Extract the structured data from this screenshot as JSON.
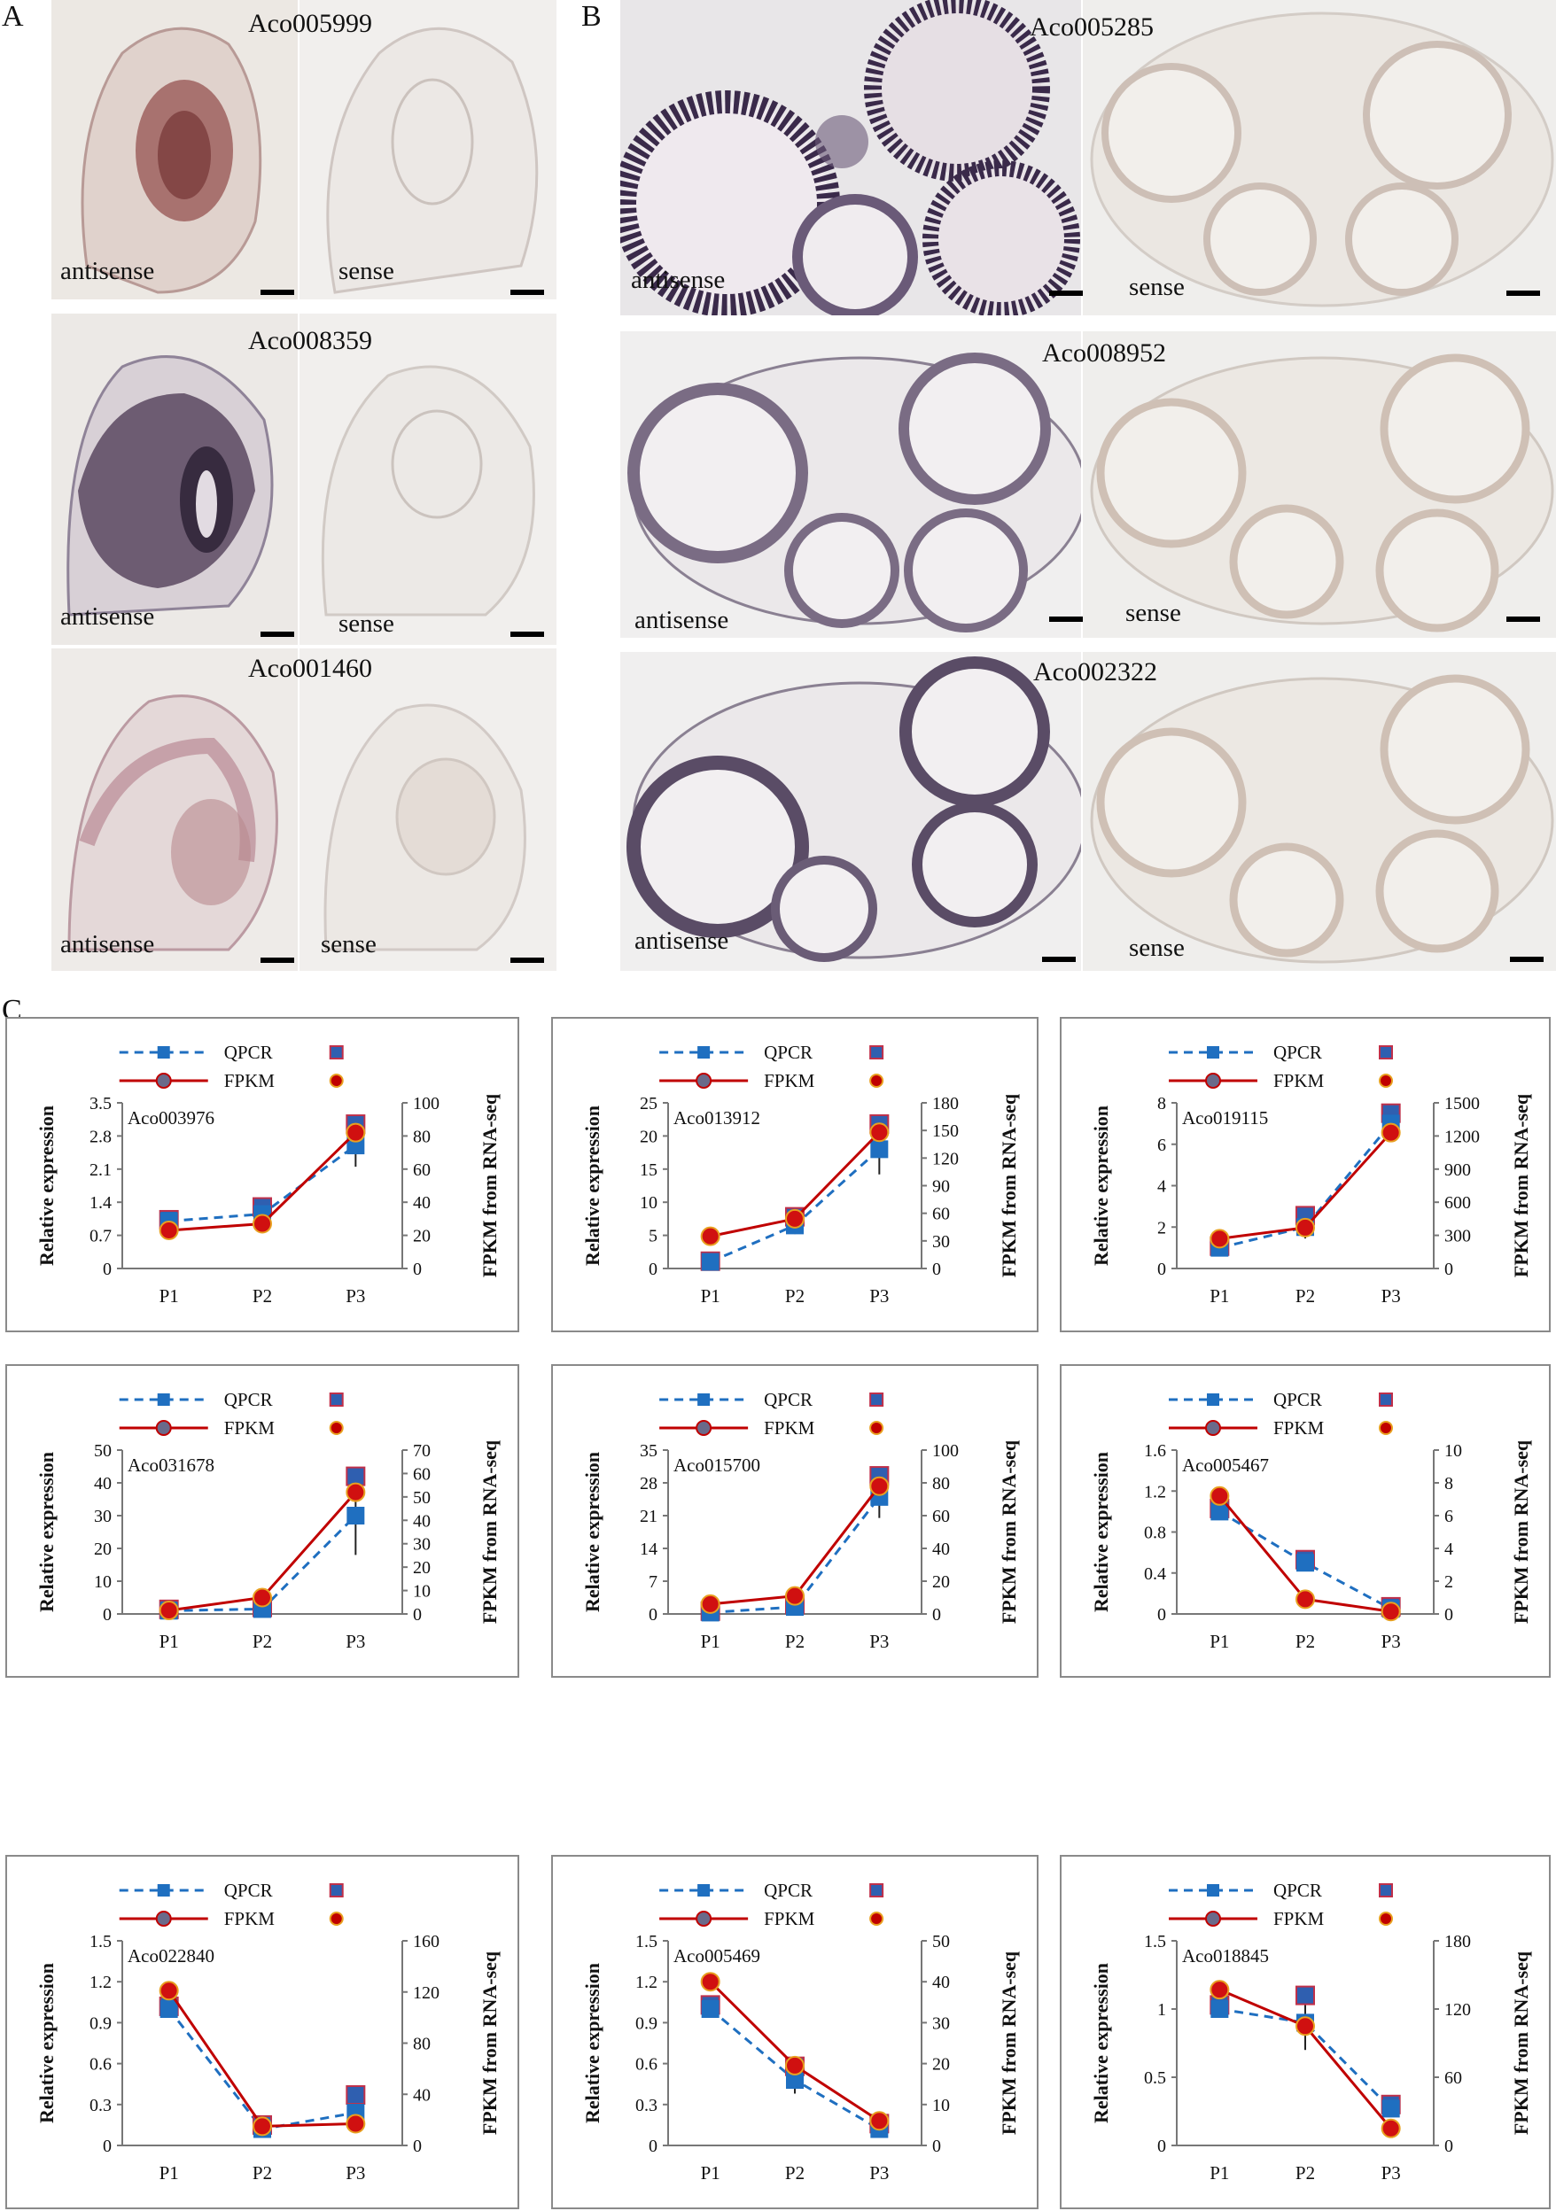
{
  "panel_labels": {
    "a": "A",
    "b": "B",
    "c": "C"
  },
  "panel_a": [
    {
      "gene": "Aco005999",
      "antisense": "antisense",
      "sense": "sense"
    },
    {
      "gene": "Aco008359",
      "antisense": "antisense",
      "sense": "sense"
    },
    {
      "gene": "Aco001460",
      "antisense": "antisense",
      "sense": "sense"
    }
  ],
  "panel_b": [
    {
      "gene": "Aco005285",
      "antisense": "antisense",
      "sense": "sense"
    },
    {
      "gene": "Aco008952",
      "antisense": "antisense",
      "sense": "sense"
    },
    {
      "gene": "Aco002322",
      "antisense": "antisense",
      "sense": "sense"
    }
  ],
  "colors": {
    "qpcr": "#1f6fc0",
    "fpkm": "#c00000",
    "frame": "#8a8a8a",
    "stain_purple": "#3a2a4a",
    "stain_red": "#8a3a3a"
  },
  "chart_data": [
    {
      "type": "line",
      "title": "Aco003976",
      "categories": [
        "P1",
        "P2",
        "P3"
      ],
      "series": [
        {
          "name": "QPCR",
          "axis": "left",
          "values": [
            1.0,
            1.15,
            2.6
          ],
          "error": [
            0.03,
            0.15,
            0.45
          ]
        },
        {
          "name": "FPKM",
          "axis": "right",
          "values": [
            23,
            27,
            82
          ]
        }
      ],
      "ylabel": "Relative expression",
      "y2label": "FPKM from RNA-seq",
      "ylim": [
        0,
        3.5
      ],
      "yticks": [
        "0",
        "0.7",
        "1.4",
        "2.1",
        "2.8",
        "3.5"
      ],
      "y2lim": [
        0,
        100
      ],
      "y2ticks": [
        "0",
        "20",
        "40",
        "60",
        "80",
        "100"
      ]
    },
    {
      "type": "line",
      "title": "Aco013912",
      "categories": [
        "P1",
        "P2",
        "P3"
      ],
      "series": [
        {
          "name": "QPCR",
          "axis": "left",
          "values": [
            1.0,
            6.5,
            18.0
          ],
          "error": [
            0.1,
            1.3,
            3.8
          ]
        },
        {
          "name": "FPKM",
          "axis": "right",
          "values": [
            35,
            54,
            148
          ]
        }
      ],
      "ylabel": "Relative expression",
      "y2label": "FPKM from RNA-seq",
      "ylim": [
        0,
        25
      ],
      "yticks": [
        "0",
        "5",
        "10",
        "15",
        "20",
        "25"
      ],
      "y2lim": [
        0,
        180
      ],
      "y2ticks": [
        "0",
        "30",
        "60",
        "90",
        "120",
        "150",
        "180"
      ]
    },
    {
      "type": "line",
      "title": "Aco019115",
      "categories": [
        "P1",
        "P2",
        "P3"
      ],
      "series": [
        {
          "name": "QPCR",
          "axis": "left",
          "values": [
            1.0,
            2.0,
            7.0
          ],
          "error": [
            0.08,
            0.55,
            0.5
          ]
        },
        {
          "name": "FPKM",
          "axis": "right",
          "values": [
            270,
            370,
            1230
          ]
        }
      ],
      "ylabel": "Relative expression",
      "y2label": "FPKM from RNA-seq",
      "ylim": [
        0,
        8
      ],
      "yticks": [
        "0",
        "2",
        "4",
        "6",
        "8"
      ],
      "y2lim": [
        0,
        1500
      ],
      "y2ticks": [
        "0",
        "300",
        "600",
        "900",
        "1200",
        "1500"
      ]
    },
    {
      "type": "line",
      "title": "Aco031678",
      "categories": [
        "P1",
        "P2",
        "P3"
      ],
      "series": [
        {
          "name": "QPCR",
          "axis": "left",
          "values": [
            1.0,
            1.5,
            30.0
          ],
          "error": [
            0.4,
            0.5,
            12.0
          ]
        },
        {
          "name": "FPKM",
          "axis": "right",
          "values": [
            1.5,
            7,
            52
          ]
        }
      ],
      "ylabel": "Relative expression",
      "y2label": "FPKM from RNA-seq",
      "ylim": [
        0,
        50
      ],
      "yticks": [
        "0",
        "10",
        "20",
        "30",
        "40",
        "50"
      ],
      "y2lim": [
        0,
        70
      ],
      "y2ticks": [
        "0",
        "10",
        "20",
        "30",
        "40",
        "50",
        "60",
        "70"
      ]
    },
    {
      "type": "line",
      "title": "Aco015700",
      "categories": [
        "P1",
        "P2",
        "P3"
      ],
      "series": [
        {
          "name": "QPCR",
          "axis": "left",
          "values": [
            0.3,
            1.5,
            25.0
          ],
          "error": [
            0.3,
            0.5,
            4.5
          ]
        },
        {
          "name": "FPKM",
          "axis": "right",
          "values": [
            6,
            11,
            78
          ]
        }
      ],
      "ylabel": "Relative expression",
      "y2label": "FPKM from RNA-seq",
      "ylim": [
        0,
        35
      ],
      "yticks": [
        "0",
        "7",
        "14",
        "21",
        "28",
        "35"
      ],
      "y2lim": [
        0,
        100
      ],
      "y2ticks": [
        "0",
        "20",
        "40",
        "60",
        "80",
        "100"
      ]
    },
    {
      "type": "line",
      "title": "Aco005467",
      "categories": [
        "P1",
        "P2",
        "P3"
      ],
      "series": [
        {
          "name": "QPCR",
          "axis": "left",
          "values": [
            1.0,
            0.5,
            0.05
          ],
          "error": [
            0.03,
            0.03,
            0.02
          ]
        },
        {
          "name": "FPKM",
          "axis": "right",
          "values": [
            7.2,
            0.9,
            0.15
          ]
        }
      ],
      "ylabel": "Relative expression",
      "y2label": "FPKM from RNA-seq",
      "ylim": [
        0,
        1.6
      ],
      "yticks": [
        "0",
        "0.4",
        "0.8",
        "1.2",
        "1.6"
      ],
      "y2lim": [
        0,
        10
      ],
      "y2ticks": [
        "0",
        "2",
        "4",
        "6",
        "8",
        "10"
      ]
    },
    {
      "type": "line",
      "title": "Aco022840",
      "categories": [
        "P1",
        "P2",
        "P3"
      ],
      "series": [
        {
          "name": "QPCR",
          "axis": "left",
          "values": [
            1.0,
            0.12,
            0.24
          ],
          "error": [
            0.02,
            0.03,
            0.13
          ]
        },
        {
          "name": "FPKM",
          "axis": "right",
          "values": [
            121,
            15,
            17
          ]
        }
      ],
      "ylabel": "Relative expression",
      "y2label": "FPKM from RNA-seq",
      "ylim": [
        0,
        1.5
      ],
      "yticks": [
        "0",
        "0.3",
        "0.6",
        "0.9",
        "1.2",
        "1.5"
      ],
      "y2lim": [
        0,
        160
      ],
      "y2ticks": [
        "0",
        "40",
        "80",
        "120",
        "160"
      ]
    },
    {
      "type": "line",
      "title": "Aco005469",
      "categories": [
        "P1",
        "P2",
        "P3"
      ],
      "series": [
        {
          "name": "QPCR",
          "axis": "left",
          "values": [
            1.0,
            0.48,
            0.12
          ],
          "error": [
            0.03,
            0.1,
            0.04
          ]
        },
        {
          "name": "FPKM",
          "axis": "right",
          "values": [
            40,
            19.5,
            6
          ]
        }
      ],
      "ylabel": "Relative expression",
      "y2label": "FPKM from RNA-seq",
      "ylim": [
        0,
        1.5
      ],
      "yticks": [
        "0",
        "0.3",
        "0.6",
        "0.9",
        "1.2",
        "1.5"
      ],
      "y2lim": [
        0,
        50
      ],
      "y2ticks": [
        "0",
        "10",
        "20",
        "30",
        "40",
        "50"
      ]
    },
    {
      "type": "line",
      "title": "Aco018845",
      "categories": [
        "P1",
        "P2",
        "P3"
      ],
      "series": [
        {
          "name": "QPCR",
          "axis": "left",
          "values": [
            1.0,
            0.9,
            0.27
          ],
          "error": [
            0.03,
            0.2,
            0.03
          ]
        },
        {
          "name": "FPKM",
          "axis": "right",
          "values": [
            137,
            105,
            15
          ]
        }
      ],
      "ylabel": "Relative expression",
      "y2label": "FPKM from RNA-seq",
      "ylim": [
        0,
        1.5
      ],
      "yticks": [
        "0",
        "0.5",
        "1",
        "1.5"
      ],
      "y2lim": [
        0,
        180
      ],
      "y2ticks": [
        "0",
        "60",
        "120",
        "180"
      ]
    }
  ]
}
